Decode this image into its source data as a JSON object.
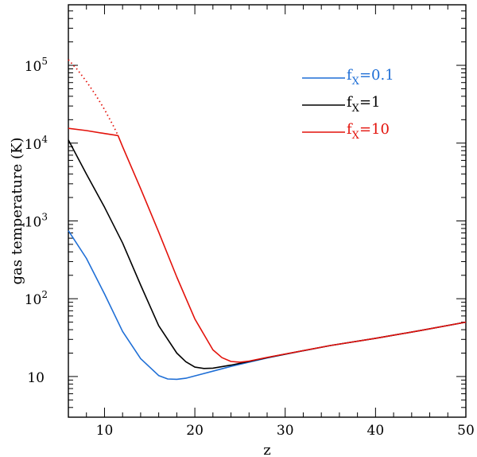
{
  "chart_data": {
    "type": "line",
    "title": "",
    "xlabel": "z",
    "ylabel": "gas temperature (K)",
    "xlim": [
      6,
      50
    ],
    "ylim": [
      3,
      600000
    ],
    "yscale": "log",
    "x_ticks": [
      {
        "value": 10,
        "label": "10"
      },
      {
        "value": 20,
        "label": "20"
      },
      {
        "value": 30,
        "label": "30"
      },
      {
        "value": 40,
        "label": "40"
      },
      {
        "value": 50,
        "label": "50"
      }
    ],
    "y_ticks": [
      {
        "value": 10,
        "label": "10",
        "exp": ""
      },
      {
        "value": 100,
        "label": "10",
        "exp": "2"
      },
      {
        "value": 1000,
        "label": "10",
        "exp": "3"
      },
      {
        "value": 10000,
        "label": "10",
        "exp": "4"
      },
      {
        "value": 100000,
        "label": "10",
        "exp": "5"
      }
    ],
    "legend": {
      "placement": "top-right",
      "entries": [
        {
          "base": "f",
          "sub": "X",
          "rest": "=0.1",
          "color": "#1f6fd6"
        },
        {
          "base": "f",
          "sub": "X",
          "rest": "=1",
          "color": "#000000"
        },
        {
          "base": "f",
          "sub": "X",
          "rest": "=10",
          "color": "#e3120b"
        }
      ]
    },
    "series": [
      {
        "color": "#1f6fd6",
        "style": "solid",
        "x": [
          6,
          8,
          10,
          12,
          14,
          16,
          17,
          18,
          19,
          20,
          22,
          24,
          26,
          28,
          30,
          35,
          40,
          45,
          50
        ],
        "y": [
          750,
          330,
          115,
          38,
          17,
          10.3,
          9.3,
          9.2,
          9.5,
          10.2,
          11.7,
          13.5,
          15.3,
          17.3,
          19.3,
          25,
          31,
          39,
          50
        ]
      },
      {
        "color": "#000000",
        "style": "solid",
        "x": [
          6,
          8,
          10,
          12,
          14,
          16,
          18,
          19,
          20,
          21,
          22,
          24,
          26,
          28,
          30,
          35,
          40,
          45,
          50
        ],
        "y": [
          11000,
          4000,
          1500,
          520,
          150,
          45,
          20,
          15.5,
          13.2,
          12.7,
          12.8,
          14,
          15.6,
          17.5,
          19.4,
          25,
          31,
          39,
          50
        ]
      },
      {
        "color": "#e3120b",
        "style": "solid",
        "x": [
          6,
          8,
          10,
          11.5,
          12,
          14,
          16,
          18,
          20,
          22,
          23,
          24,
          25,
          26,
          28,
          30,
          35,
          40,
          45,
          50
        ],
        "y": [
          15500,
          14500,
          13300,
          12500,
          9000,
          2600,
          720,
          190,
          55,
          22,
          17.5,
          15.6,
          15.3,
          15.8,
          17.6,
          19.5,
          25,
          31,
          39,
          50
        ]
      },
      {
        "color": "#e3120b",
        "style": "dotted",
        "x": [
          6,
          7,
          8,
          9,
          10,
          11,
          11.5
        ],
        "y": [
          118000,
          88000,
          62000,
          42000,
          27000,
          16500,
          12500
        ]
      }
    ]
  }
}
